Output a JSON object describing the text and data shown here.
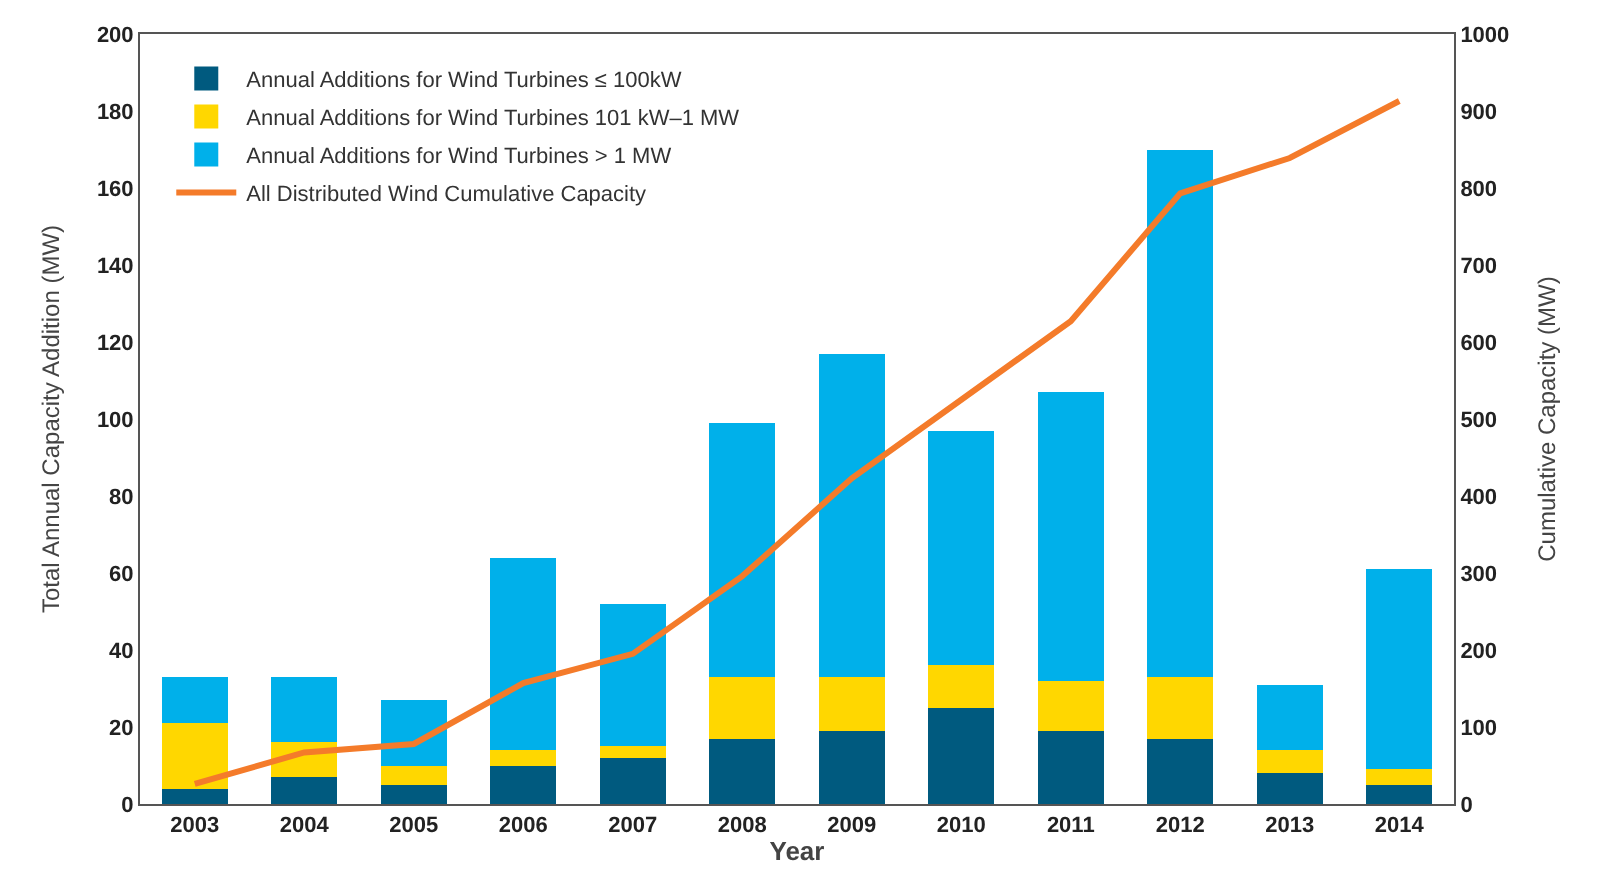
{
  "chart_data": {
    "type": "bar",
    "stacked": true,
    "xlabel": "Year",
    "ylabel": "Total Annual Capacity Addition (MW)",
    "y2label": "Cumulative Capacity (MW)",
    "categories": [
      "2003",
      "2004",
      "2005",
      "2006",
      "2007",
      "2008",
      "2009",
      "2010",
      "2011",
      "2012",
      "2013",
      "2014"
    ],
    "series": [
      {
        "name": "Annual Additions for Wind Turbines ≤ 100kW",
        "color": "#005a7f",
        "values": [
          4,
          7,
          5,
          10,
          12,
          17,
          19,
          25,
          19,
          17,
          8,
          5
        ]
      },
      {
        "name": "Annual Additions for Wind Turbines 101 kW–1 MW",
        "color": "#ffd700",
        "values": [
          17,
          9,
          5,
          4,
          3,
          16,
          14,
          11,
          13,
          16,
          6,
          4
        ]
      },
      {
        "name": "Annual Additions for Wind Turbines > 1 MW",
        "color": "#00b0ea",
        "values": [
          12,
          17,
          17,
          50,
          37,
          66,
          84,
          61,
          75,
          137,
          17,
          52
        ]
      },
      {
        "name": "All Distributed Wind Cumulative Capacity",
        "color": "#f47b2a",
        "type": "line",
        "axis": "y2",
        "values": [
          26,
          67,
          78,
          157,
          195,
          296,
          423,
          525,
          627,
          793,
          839,
          913
        ]
      }
    ],
    "ylim": [
      0,
      200
    ],
    "yticks": [
      0,
      20,
      40,
      60,
      80,
      100,
      120,
      140,
      160,
      180,
      200
    ],
    "y2lim": [
      0,
      1000
    ],
    "y2ticks": [
      0,
      100,
      200,
      300,
      400,
      500,
      600,
      700,
      800,
      900,
      1000
    ],
    "legend": "top left"
  }
}
